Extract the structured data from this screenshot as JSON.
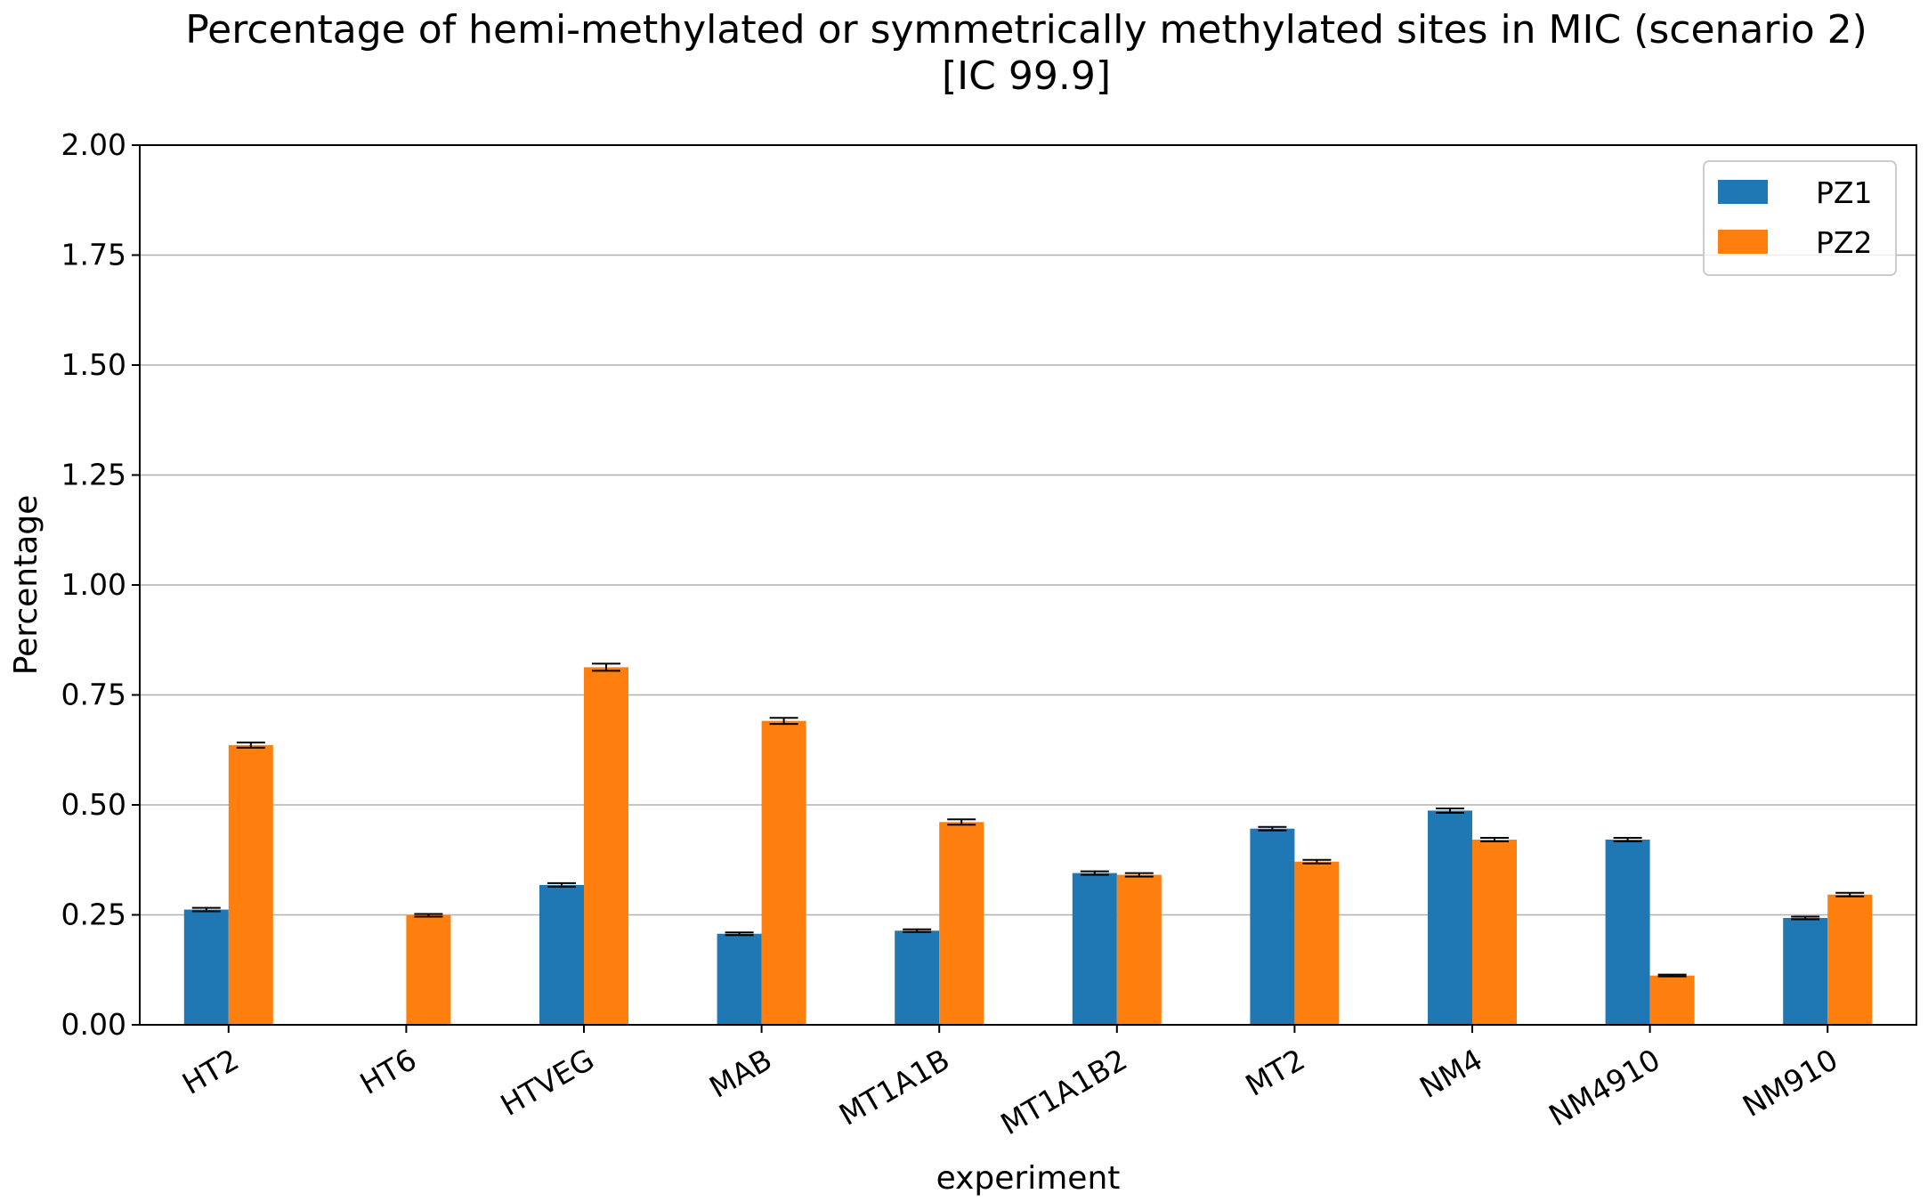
{
  "chart_data": {
    "type": "bar",
    "title": "Percentage of hemi-methylated or symmetrically methylated sites in MIC (scenario 2)",
    "subtitle": "[IC 99.9]",
    "xlabel": "experiment",
    "ylabel": "Percentage",
    "ylim": [
      0,
      2.0
    ],
    "yticks": [
      "0.00",
      "0.25",
      "0.50",
      "0.75",
      "1.00",
      "1.25",
      "1.50",
      "1.75",
      "2.00"
    ],
    "grid": "y",
    "legend_position": "top-right",
    "categories": [
      "HT2",
      "HT6",
      "HTVEG",
      "MAB",
      "MT1A1B",
      "MT1A1B2",
      "MT2",
      "NM4",
      "NM4910",
      "NM910"
    ],
    "series": [
      {
        "name": "PZ1",
        "color": "#1f77b4",
        "values": [
          0.262,
          null,
          0.318,
          0.207,
          0.214,
          0.345,
          0.446,
          0.487,
          0.421,
          0.243
        ],
        "errors": [
          0.004,
          null,
          0.004,
          0.003,
          0.003,
          0.004,
          0.004,
          0.005,
          0.004,
          0.003
        ]
      },
      {
        "name": "PZ2",
        "color": "#ff7f0e",
        "values": [
          0.636,
          0.249,
          0.813,
          0.691,
          0.461,
          0.341,
          0.371,
          0.421,
          0.112,
          0.296
        ],
        "errors": [
          0.006,
          0.003,
          0.008,
          0.007,
          0.006,
          0.004,
          0.004,
          0.004,
          0.002,
          0.004
        ]
      }
    ]
  }
}
